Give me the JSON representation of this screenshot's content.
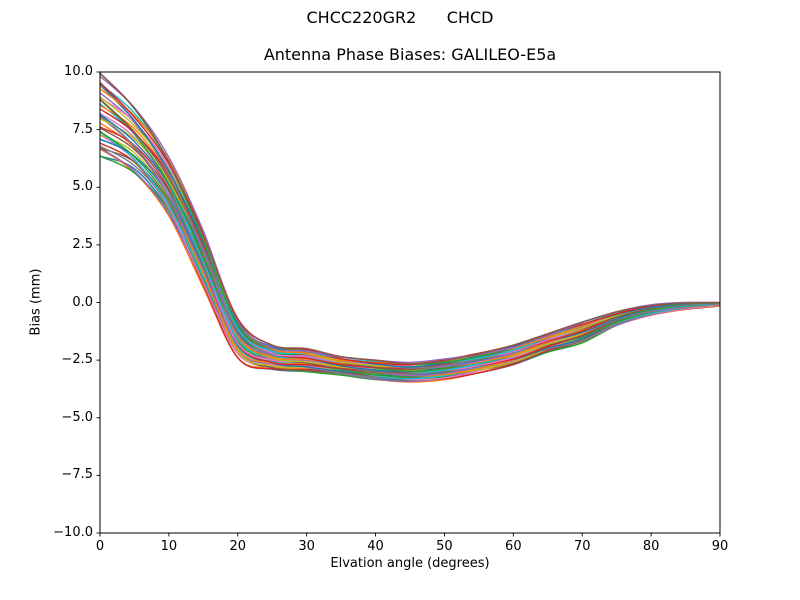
{
  "figure": {
    "suptitle": "CHCC220GR2      CHCD",
    "background": "#ffffff"
  },
  "chart_data": {
    "type": "line",
    "title": "Antenna Phase Biases: GALILEO-E5a",
    "xlabel": "Elvation angle (degrees)",
    "ylabel": "Bias (mm)",
    "xlim": [
      0,
      90
    ],
    "ylim": [
      -10,
      10
    ],
    "xticks": [
      0,
      10,
      20,
      30,
      40,
      50,
      60,
      70,
      80,
      90
    ],
    "xtick_labels": [
      "0",
      "10",
      "20",
      "30",
      "40",
      "50",
      "60",
      "70",
      "80",
      "90"
    ],
    "yticks": [
      10,
      7.5,
      5,
      2.5,
      0,
      -2.5,
      -5,
      -7.5,
      -10
    ],
    "ytick_labels": [
      "10.0",
      "7.5",
      "5.0",
      "2.5",
      "0.0",
      "−2.5",
      "−5.0",
      "−7.5",
      "−10.0"
    ],
    "grid": false,
    "x": [
      0,
      5,
      10,
      15,
      20,
      25,
      30,
      35,
      40,
      45,
      50,
      55,
      60,
      65,
      70,
      75,
      80,
      85,
      90
    ],
    "envelope_upper": [
      9.95,
      8.45,
      6.3,
      3.1,
      -0.7,
      -1.85,
      -2.0,
      -2.35,
      -2.5,
      -2.6,
      -2.45,
      -2.2,
      -1.85,
      -1.35,
      -0.85,
      -0.4,
      -0.1,
      0.0,
      0.0
    ],
    "envelope_lower": [
      6.35,
      5.6,
      3.75,
      0.65,
      -2.4,
      -2.9,
      -3.0,
      -3.15,
      -3.35,
      -3.45,
      -3.35,
      -3.05,
      -2.7,
      -2.15,
      -1.75,
      -1.0,
      -0.55,
      -0.3,
      -0.15
    ],
    "num_lines": 36,
    "line_width": 1.4,
    "palette": [
      "#1f77b4",
      "#ff7f0e",
      "#2ca02c",
      "#d62728",
      "#9467bd",
      "#8c564b",
      "#e377c2",
      "#7f7f7f",
      "#bcbd22",
      "#17becf"
    ],
    "axis_color": "#000000"
  }
}
